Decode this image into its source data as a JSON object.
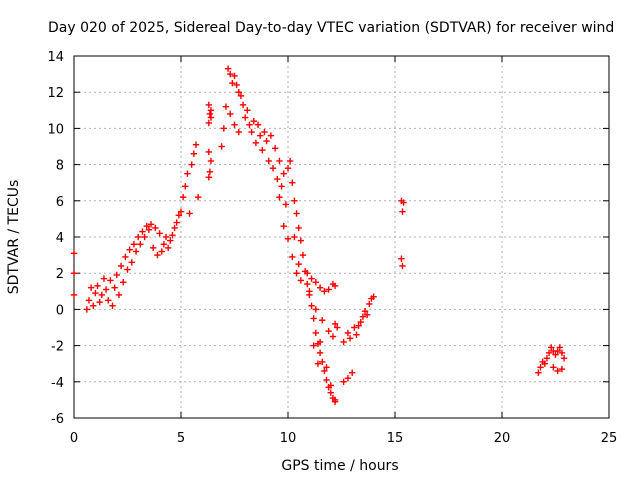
{
  "chart_data": {
    "type": "scatter",
    "title": "Day 020 of 2025, Sidereal Day-to-day VTEC variation (SDTVAR) for receiver wind",
    "xlabel": "GPS time / hours",
    "ylabel": "SDTVAR / TECUs",
    "xlim": [
      0,
      25
    ],
    "ylim": [
      -6,
      14
    ],
    "xticks": [
      0,
      5,
      10,
      15,
      20,
      25
    ],
    "yticks": [
      -6,
      -4,
      -2,
      0,
      2,
      4,
      6,
      8,
      10,
      12,
      14
    ],
    "xtick_labels": [
      "0",
      "5",
      "10",
      "15",
      "20",
      "25"
    ],
    "ytick_labels": [
      "-6",
      "-4",
      "-2",
      "0",
      "2",
      "4",
      "6",
      "8",
      "10",
      "12",
      "14"
    ],
    "grid": true,
    "marker": "+",
    "color": "#ff0000",
    "series": [
      {
        "name": "SDTVAR",
        "points": [
          [
            0.0,
            3.1
          ],
          [
            0.0,
            2.0
          ],
          [
            0.0,
            0.8
          ],
          [
            0.6,
            0.0
          ],
          [
            0.7,
            0.5
          ],
          [
            0.8,
            1.2
          ],
          [
            0.9,
            0.2
          ],
          [
            1.0,
            0.9
          ],
          [
            1.1,
            1.3
          ],
          [
            1.2,
            0.4
          ],
          [
            1.3,
            0.8
          ],
          [
            1.4,
            1.7
          ],
          [
            1.5,
            1.1
          ],
          [
            1.6,
            0.5
          ],
          [
            1.7,
            1.6
          ],
          [
            1.8,
            0.2
          ],
          [
            1.9,
            1.2
          ],
          [
            2.0,
            1.9
          ],
          [
            2.1,
            0.8
          ],
          [
            2.2,
            2.4
          ],
          [
            2.3,
            1.5
          ],
          [
            2.4,
            2.9
          ],
          [
            2.5,
            2.2
          ],
          [
            2.6,
            3.3
          ],
          [
            2.7,
            2.6
          ],
          [
            2.8,
            3.6
          ],
          [
            2.9,
            3.2
          ],
          [
            3.0,
            4.0
          ],
          [
            3.1,
            3.6
          ],
          [
            3.2,
            4.3
          ],
          [
            3.3,
            4.0
          ],
          [
            3.4,
            4.6
          ],
          [
            3.5,
            4.4
          ],
          [
            3.6,
            4.7
          ],
          [
            3.7,
            3.4
          ],
          [
            3.8,
            4.5
          ],
          [
            3.9,
            3.0
          ],
          [
            4.0,
            4.2
          ],
          [
            4.1,
            3.2
          ],
          [
            4.2,
            3.6
          ],
          [
            4.3,
            4.0
          ],
          [
            4.4,
            3.4
          ],
          [
            4.5,
            3.8
          ],
          [
            4.6,
            4.1
          ],
          [
            4.7,
            4.5
          ],
          [
            4.8,
            4.8
          ],
          [
            4.9,
            5.2
          ],
          [
            5.0,
            5.4
          ],
          [
            5.1,
            6.2
          ],
          [
            5.2,
            6.8
          ],
          [
            5.3,
            7.5
          ],
          [
            5.4,
            5.3
          ],
          [
            5.5,
            8.0
          ],
          [
            5.6,
            8.6
          ],
          [
            5.7,
            9.1
          ],
          [
            5.8,
            6.2
          ],
          [
            6.3,
            11.3
          ],
          [
            6.35,
            10.8
          ],
          [
            6.4,
            11.0
          ],
          [
            6.3,
            10.3
          ],
          [
            6.4,
            10.6
          ],
          [
            6.3,
            8.7
          ],
          [
            6.4,
            8.2
          ],
          [
            6.35,
            7.6
          ],
          [
            6.3,
            7.3
          ],
          [
            6.9,
            9.0
          ],
          [
            7.0,
            10.0
          ],
          [
            7.1,
            11.2
          ],
          [
            7.2,
            13.3
          ],
          [
            7.3,
            13.0
          ],
          [
            7.4,
            12.5
          ],
          [
            7.5,
            12.9
          ],
          [
            7.6,
            12.4
          ],
          [
            7.7,
            12.0
          ],
          [
            7.8,
            11.8
          ],
          [
            7.9,
            11.3
          ],
          [
            8.0,
            10.6
          ],
          [
            7.3,
            10.8
          ],
          [
            7.5,
            10.2
          ],
          [
            7.7,
            9.8
          ],
          [
            8.1,
            11.0
          ],
          [
            8.2,
            10.2
          ],
          [
            8.3,
            9.8
          ],
          [
            8.4,
            10.4
          ],
          [
            8.5,
            9.2
          ],
          [
            8.6,
            10.2
          ],
          [
            8.7,
            9.6
          ],
          [
            8.8,
            8.8
          ],
          [
            8.9,
            9.8
          ],
          [
            9.0,
            9.3
          ],
          [
            9.1,
            8.2
          ],
          [
            9.2,
            9.6
          ],
          [
            9.3,
            7.8
          ],
          [
            9.4,
            8.9
          ],
          [
            9.5,
            7.2
          ],
          [
            9.6,
            8.2
          ],
          [
            9.7,
            6.8
          ],
          [
            9.8,
            7.5
          ],
          [
            9.9,
            5.8
          ],
          [
            10.0,
            7.8
          ],
          [
            10.1,
            8.2
          ],
          [
            10.2,
            7.0
          ],
          [
            10.3,
            6.0
          ],
          [
            10.4,
            5.3
          ],
          [
            10.5,
            4.5
          ],
          [
            10.6,
            3.8
          ],
          [
            10.7,
            3.0
          ],
          [
            10.8,
            2.1
          ],
          [
            10.9,
            1.4
          ],
          [
            11.0,
            0.8
          ],
          [
            11.1,
            0.2
          ],
          [
            11.2,
            -0.5
          ],
          [
            11.3,
            -1.3
          ],
          [
            11.4,
            -1.9
          ],
          [
            11.5,
            -2.4
          ],
          [
            11.6,
            -2.9
          ],
          [
            11.7,
            -3.4
          ],
          [
            11.8,
            -3.9
          ],
          [
            11.9,
            -4.3
          ],
          [
            12.0,
            -4.6
          ],
          [
            12.1,
            -4.9
          ],
          [
            12.2,
            -5.1
          ],
          [
            9.6,
            6.2
          ],
          [
            9.8,
            4.6
          ],
          [
            10.0,
            3.9
          ],
          [
            10.2,
            2.9
          ],
          [
            10.4,
            2.0
          ],
          [
            10.6,
            1.6
          ],
          [
            10.9,
            2.0
          ],
          [
            11.1,
            1.7
          ],
          [
            11.3,
            1.5
          ],
          [
            11.5,
            1.2
          ],
          [
            11.7,
            1.0
          ],
          [
            11.9,
            1.1
          ],
          [
            12.1,
            1.4
          ],
          [
            12.2,
            1.3
          ],
          [
            10.3,
            4.0
          ],
          [
            10.5,
            2.5
          ],
          [
            11.0,
            1.0
          ],
          [
            11.3,
            0.0
          ],
          [
            11.6,
            -0.6
          ],
          [
            11.9,
            -1.2
          ],
          [
            12.1,
            -1.5
          ],
          [
            11.5,
            -1.8
          ],
          [
            11.8,
            -3.2
          ],
          [
            12.0,
            -4.2
          ],
          [
            12.2,
            -5.0
          ],
          [
            11.2,
            -2.0
          ],
          [
            11.4,
            -3.0
          ],
          [
            12.3,
            -1.0
          ],
          [
            12.2,
            -0.8
          ],
          [
            12.6,
            -1.8
          ],
          [
            12.8,
            -1.3
          ],
          [
            12.9,
            -1.6
          ],
          [
            13.1,
            -1.0
          ],
          [
            13.2,
            -1.4
          ],
          [
            13.3,
            -0.9
          ],
          [
            12.6,
            -4.0
          ],
          [
            12.8,
            -3.8
          ],
          [
            13.0,
            -3.5
          ],
          [
            13.4,
            -0.7
          ],
          [
            13.5,
            -0.4
          ],
          [
            13.6,
            -0.1
          ],
          [
            13.7,
            -0.3
          ],
          [
            13.8,
            0.3
          ],
          [
            13.9,
            0.6
          ],
          [
            14.0,
            0.7
          ],
          [
            15.3,
            6.0
          ],
          [
            15.4,
            5.9
          ],
          [
            15.35,
            5.4
          ],
          [
            15.3,
            2.8
          ],
          [
            15.35,
            2.4
          ],
          [
            21.7,
            -3.5
          ],
          [
            21.8,
            -3.2
          ],
          [
            21.9,
            -2.9
          ],
          [
            22.0,
            -3.0
          ],
          [
            22.1,
            -2.7
          ],
          [
            22.2,
            -2.4
          ],
          [
            22.3,
            -2.1
          ],
          [
            22.4,
            -2.3
          ],
          [
            22.5,
            -2.5
          ],
          [
            22.6,
            -2.3
          ],
          [
            22.7,
            -2.1
          ],
          [
            22.8,
            -2.4
          ],
          [
            22.9,
            -2.7
          ],
          [
            22.4,
            -3.2
          ],
          [
            22.6,
            -3.4
          ],
          [
            22.8,
            -3.3
          ]
        ]
      }
    ]
  }
}
